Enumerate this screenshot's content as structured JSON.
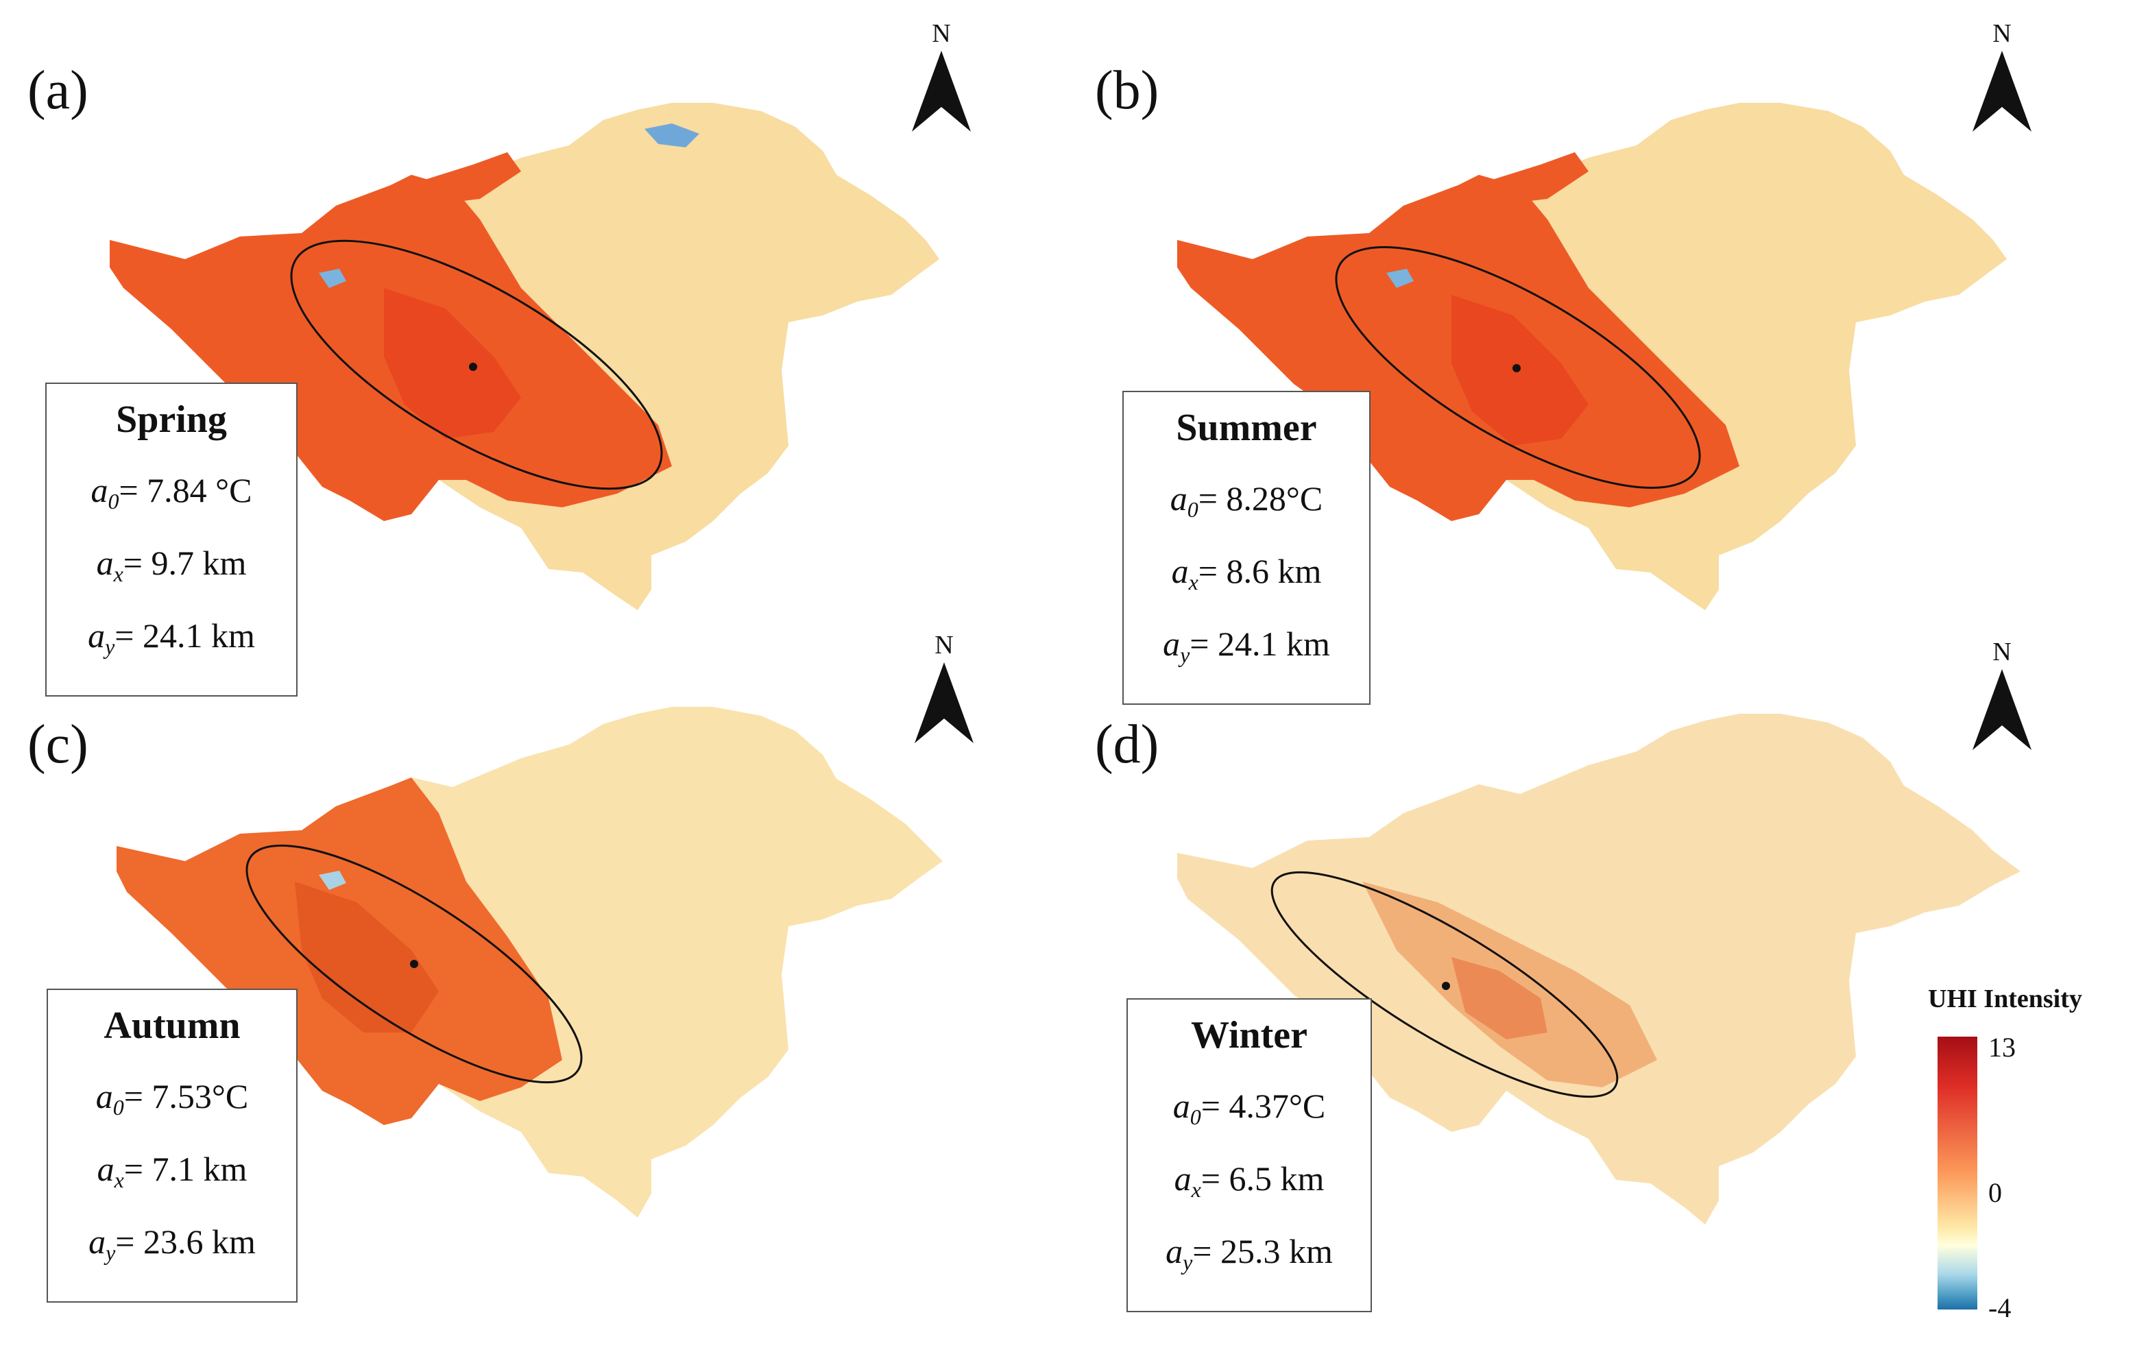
{
  "panels": [
    {
      "letter": "(a)",
      "north": "N",
      "season": "Spring",
      "a0_value": "= 7.84 °C",
      "ax_value": "= 9.7 km",
      "ay_value": "= 24.1 km"
    },
    {
      "letter": "(b)",
      "north": "N",
      "season": "Summer",
      "a0_value": "= 8.28°C",
      "ax_value": "= 8.6 km",
      "ay_value": "= 24.1 km"
    },
    {
      "letter": "(c)",
      "north": "N",
      "season": "Autumn",
      "a0_value": "= 7.53°C",
      "ax_value": "= 7.1 km",
      "ay_value": "= 23.6 km"
    },
    {
      "letter": "(d)",
      "north": "N",
      "season": "Winter",
      "a0_value": "= 4.37°C",
      "ax_value": "= 6.5 km",
      "ay_value": "= 25.3 km"
    }
  ],
  "symbols": {
    "a": "a",
    "sub0": "0",
    "subx": "x",
    "suby": "y"
  },
  "legend": {
    "title": "UHI Intensity",
    "max_label": "13",
    "mid_label": "0",
    "min_label": "-4",
    "color_high": "#a50f15",
    "color_mid": "#ffffdd",
    "color_low": "#1d6fa8"
  },
  "map_colors": {
    "spring": {
      "base": "#f8dca0",
      "hot": "#ee5a26",
      "core": "#e8471f"
    },
    "summer": {
      "base": "#f8dca0",
      "hot": "#ee5a26",
      "core": "#e8471f"
    },
    "autumn": {
      "base": "#fae2ad",
      "hot": "#ef6a2d",
      "core": "#e45822"
    },
    "winter": {
      "base": "#f9dfb0",
      "hot": "#f2b079",
      "core": "#ec8a55"
    }
  }
}
